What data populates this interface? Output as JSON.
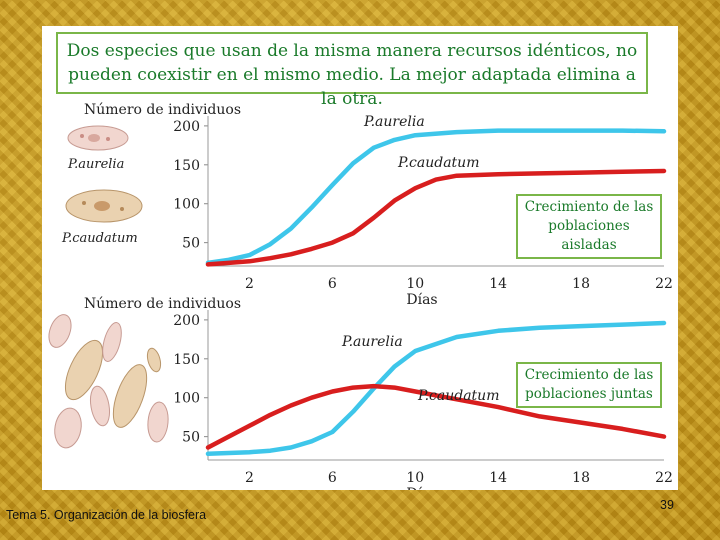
{
  "title": "Dos especies que usan de la misma manera recursos idénticos, no pueden coexistir en el mismo medio. La mejor adaptada elimina a la otra.",
  "footer": "Tema 5. Organización de la biosfera",
  "page_number": "39",
  "organism_labels": [
    "P.aurelia",
    "P.caudatum"
  ],
  "colors": {
    "aurelia": "#3ec6ea",
    "caudatum": "#d81e1e",
    "title_green": "#1a7a2a",
    "box_border": "#7ab648"
  },
  "chart_data": [
    {
      "type": "line",
      "ylabel": "Número de individuos",
      "xlabel": "Días",
      "caption": [
        "Crecimiento de las",
        "poblaciones aisladas"
      ],
      "x_ticks": [
        2,
        6,
        10,
        14,
        18,
        22
      ],
      "y_ticks": [
        50,
        100,
        150,
        200
      ],
      "xlim": [
        0,
        22
      ],
      "ylim": [
        20,
        205
      ],
      "series": [
        {
          "name": "P.aurelia",
          "x": [
            0,
            1,
            2,
            3,
            4,
            5,
            6,
            7,
            8,
            9,
            10,
            12,
            14,
            16,
            18,
            20,
            22
          ],
          "y": [
            24,
            28,
            34,
            48,
            68,
            95,
            124,
            152,
            172,
            182,
            188,
            192,
            194,
            194,
            194,
            194,
            193
          ]
        },
        {
          "name": "P.caudatum",
          "x": [
            0,
            1,
            2,
            3,
            4,
            5,
            6,
            7,
            8,
            9,
            10,
            11,
            12,
            14,
            16,
            18,
            20,
            22
          ],
          "y": [
            22,
            24,
            26,
            30,
            35,
            42,
            50,
            62,
            82,
            104,
            120,
            131,
            136,
            138,
            139,
            140,
            141,
            142
          ]
        }
      ]
    },
    {
      "type": "line",
      "ylabel": "Número de individuos",
      "xlabel": "Días",
      "caption": [
        "Crecimiento de las",
        "poblaciones juntas"
      ],
      "x_ticks": [
        2,
        6,
        10,
        14,
        18,
        22
      ],
      "y_ticks": [
        50,
        100,
        150,
        200
      ],
      "xlim": [
        0,
        22
      ],
      "ylim": [
        20,
        205
      ],
      "series": [
        {
          "name": "P.aurelia",
          "x": [
            0,
            1,
            2,
            3,
            4,
            5,
            6,
            7,
            8,
            9,
            10,
            12,
            14,
            16,
            18,
            20,
            22
          ],
          "y": [
            28,
            29,
            30,
            32,
            36,
            44,
            56,
            82,
            112,
            140,
            160,
            178,
            186,
            190,
            192,
            194,
            196
          ]
        },
        {
          "name": "P.caudatum",
          "x": [
            0,
            1,
            2,
            3,
            4,
            5,
            6,
            7,
            8,
            9,
            10,
            12,
            14,
            16,
            18,
            20,
            22
          ],
          "y": [
            36,
            50,
            64,
            78,
            90,
            100,
            108,
            113,
            115,
            113,
            108,
            98,
            88,
            76,
            68,
            60,
            50
          ]
        }
      ]
    }
  ]
}
